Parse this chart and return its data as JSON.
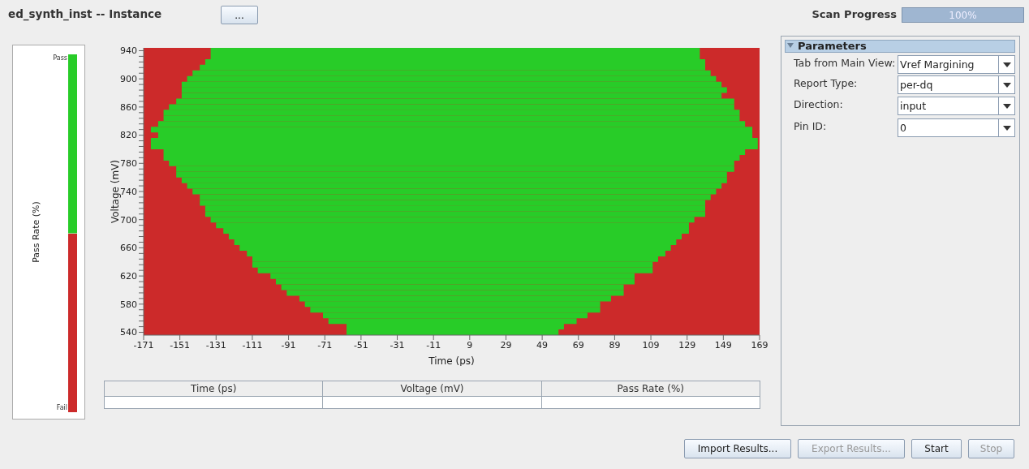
{
  "chart_data": {
    "type": "bar",
    "orientation": "horizontal",
    "title": "ed_synth_inst -- Instance",
    "xlabel": "Time (ps)",
    "ylabel": "Voltage (mV)",
    "legend_title": "Pass Rate (%)",
    "legend": "left",
    "grid": false,
    "categories": [
      "940",
      null,
      null,
      null,
      null,
      "900",
      null,
      null,
      null,
      null,
      "860",
      null,
      null,
      null,
      null,
      "820",
      null,
      null,
      null,
      null,
      "780",
      null,
      null,
      null,
      null,
      "740",
      null,
      null,
      null,
      null,
      "700",
      null,
      null,
      null,
      null,
      "660",
      null,
      null,
      null,
      null,
      "620",
      null,
      null,
      null,
      null,
      "580",
      null,
      null,
      null,
      null,
      "540"
    ],
    "series": [
      {
        "name": "Pass",
        "color": "#28cc28",
        "base": [
          -134,
          -134,
          -137,
          -140,
          -144,
          -147,
          -150,
          -150,
          -150,
          -153,
          -157,
          -160,
          -160,
          -163,
          -167,
          -163,
          -167,
          -167,
          -160,
          -160,
          -157,
          -153,
          -153,
          -150,
          -147,
          -144,
          -140,
          -140,
          -137,
          -137,
          -134,
          -131,
          -127,
          -124,
          -121,
          -118,
          -114,
          -111,
          -111,
          -108,
          -101,
          -98,
          -95,
          -92,
          -85,
          -82,
          -79,
          -72,
          -69,
          -59,
          -59
        ],
        "values": [
          270,
          270,
          276,
          279,
          286,
          292,
          298,
          301,
          298,
          308,
          312,
          318,
          318,
          324,
          332,
          328,
          335,
          335,
          321,
          318,
          312,
          308,
          304,
          301,
          295,
          289,
          282,
          279,
          276,
          276,
          267,
          261,
          257,
          250,
          244,
          238,
          231,
          224,
          221,
          218,
          201,
          198,
          189,
          186,
          172,
          163,
          160,
          146,
          137,
          120,
          117
        ]
      }
    ],
    "bands": [
      {
        "axis": "x",
        "from": -171,
        "to": 169,
        "label": "Fail",
        "color": "#cc2a2a"
      }
    ],
    "xlim": [
      -171,
      169
    ],
    "xticks": [
      -171,
      -151,
      -131,
      -111,
      -91,
      -71,
      -51,
      -31,
      -11,
      9,
      29,
      49,
      69,
      89,
      109,
      129,
      149,
      169
    ],
    "annotations": [
      "...",
      "Scan Progress",
      "100%",
      "Parameters",
      "Tab from Main View:",
      "Vref Margining",
      "Report Type:",
      "per-dq",
      "Direction:",
      "input",
      "Pin ID:",
      "0",
      "Time (ps)",
      "Voltage (mV)",
      "Pass Rate (%)",
      "Import Results...",
      "Export Results...",
      "Start",
      "Stop"
    ]
  }
}
